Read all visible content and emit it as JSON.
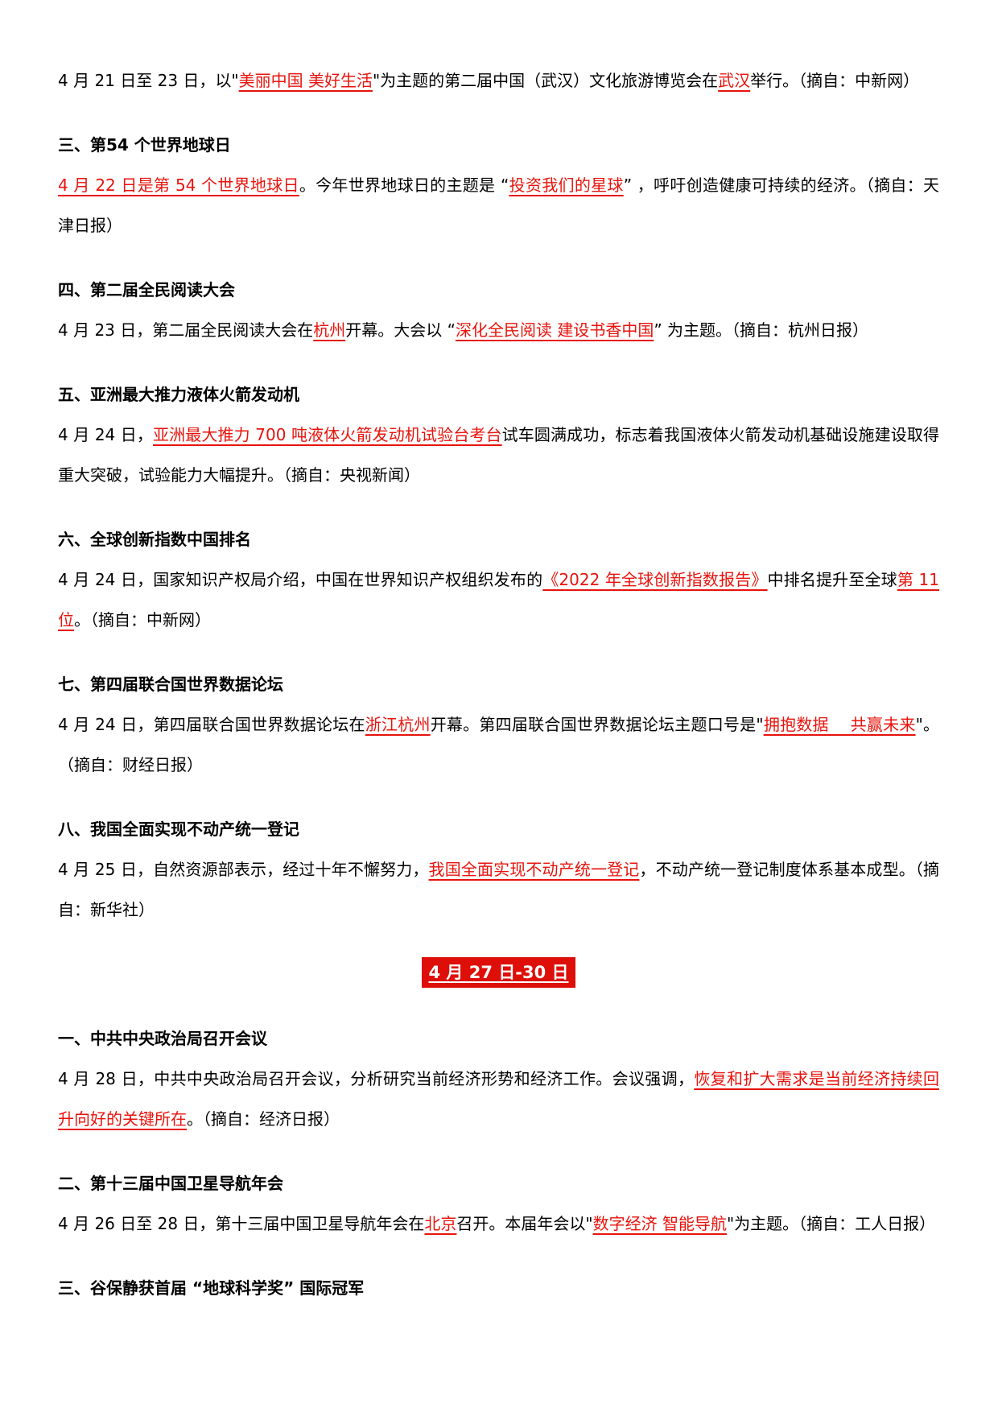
{
  "page": {
    "colors": {
      "background": "#ffffff",
      "body_text": "#000000",
      "highlight_red": "#e8130c",
      "banner_bg": "#dd0f08",
      "banner_fg": "#ffffff"
    },
    "banner_label": "4 月 27 日-30 日"
  },
  "blocks": [
    {
      "type": "paragraph",
      "segments": [
        {
          "t": "4 月 21 日至 23 日，以\"",
          "s": "n"
        },
        {
          "t": "美丽中国 美好生活",
          "s": "r"
        },
        {
          "t": "\"为主题的第二届中国（武汉）文化旅游博览会在",
          "s": "n"
        },
        {
          "t": "武汉",
          "s": "r"
        },
        {
          "t": "举行。（摘自：中新网）",
          "s": "n"
        }
      ]
    },
    {
      "type": "heading",
      "text": "三、第54 个世界地球日"
    },
    {
      "type": "paragraph",
      "segments": [
        {
          "t": "4 月 22 日是第 54 个世界地球日",
          "s": "r"
        },
        {
          "t": "。今年世界地球日的主题是 “",
          "s": "n"
        },
        {
          "t": "投资我们的星球",
          "s": "r"
        },
        {
          "t": "” ，呼吁创造健康可持续的经济。（摘自：天津日报）",
          "s": "n"
        }
      ]
    },
    {
      "type": "heading",
      "text": "四、第二届全民阅读大会"
    },
    {
      "type": "paragraph",
      "segments": [
        {
          "t": "4 月 23 日，第二届全民阅读大会在",
          "s": "n"
        },
        {
          "t": "杭州",
          "s": "r"
        },
        {
          "t": "开幕。大会以 “",
          "s": "n"
        },
        {
          "t": "深化全民阅读 建设书香中国",
          "s": "r"
        },
        {
          "t": "” 为主题。（摘自：杭州日报）",
          "s": "n"
        }
      ]
    },
    {
      "type": "heading",
      "text": "五、亚洲最大推力液体火箭发动机"
    },
    {
      "type": "paragraph",
      "segments": [
        {
          "t": "4 月 24 日，",
          "s": "n"
        },
        {
          "t": "亚洲最大推力 700 吨液体火箭发动机试验台考台",
          "s": "r"
        },
        {
          "t": "试车圆满成功，标志着我国液体火箭发动机基础设施建设取得重大突破，试验能力大幅提升。（摘自：央视新闻）",
          "s": "n"
        }
      ]
    },
    {
      "type": "heading",
      "text": "六、全球创新指数中国排名"
    },
    {
      "type": "paragraph",
      "segments": [
        {
          "t": "4 月 24 日，国家知识产权局介绍，中国在世界知识产权组织发布的",
          "s": "n"
        },
        {
          "t": "《2022 年全球创新指数报告》",
          "s": "r"
        },
        {
          "t": "中排名提升至全球",
          "s": "n"
        },
        {
          "t": "第 11 位",
          "s": "r"
        },
        {
          "t": "。（摘自：中新网）",
          "s": "n"
        }
      ]
    },
    {
      "type": "heading",
      "text": "七、第四届联合国世界数据论坛"
    },
    {
      "type": "paragraph",
      "segments": [
        {
          "t": "4 月 24 日，第四届联合国世界数据论坛在",
          "s": "n"
        },
        {
          "t": "浙江杭州",
          "s": "r"
        },
        {
          "t": "开幕。第四届联合国世界数据论坛主题口号是\"",
          "s": "n"
        },
        {
          "t": "拥抱数据　 共赢未来",
          "s": "r"
        },
        {
          "t": "\"。（摘自：财经日报）",
          "s": "n"
        }
      ]
    },
    {
      "type": "heading",
      "text": "八、我国全面实现不动产统一登记"
    },
    {
      "type": "paragraph",
      "segments": [
        {
          "t": "4 月 25 日，自然资源部表示，经过十年不懈努力，",
          "s": "n"
        },
        {
          "t": "我国全面实现不动产统一登记",
          "s": "r"
        },
        {
          "t": "，不动产统一登记制度体系基本成型。（摘自：新华社）",
          "s": "n"
        }
      ]
    },
    {
      "type": "banner",
      "text": "4 月 27 日-30 日"
    },
    {
      "type": "heading",
      "text": "一、中共中央政治局召开会议"
    },
    {
      "type": "paragraph",
      "segments": [
        {
          "t": "4 月 28 日，中共中央政治局召开会议，分析研究当前经济形势和经济工作。会议强调，",
          "s": "n"
        },
        {
          "t": "恢复和扩大需求是当前经济持续回升向好的关键所在",
          "s": "r"
        },
        {
          "t": "。（摘自：经济日报）",
          "s": "n"
        }
      ]
    },
    {
      "type": "heading",
      "text": "二、第十三届中国卫星导航年会"
    },
    {
      "type": "paragraph",
      "segments": [
        {
          "t": "4 月 26 日至 28 日，第十三届中国卫星导航年会在",
          "s": "n"
        },
        {
          "t": "北京",
          "s": "r"
        },
        {
          "t": "召开。本届年会以\"",
          "s": "n"
        },
        {
          "t": "数字经济 智能导航",
          "s": "r"
        },
        {
          "t": "\"为主题。（摘自：工人日报）",
          "s": "n"
        }
      ]
    },
    {
      "type": "heading",
      "text": "三、谷保静获首届 “地球科学奖” 国际冠军"
    }
  ]
}
